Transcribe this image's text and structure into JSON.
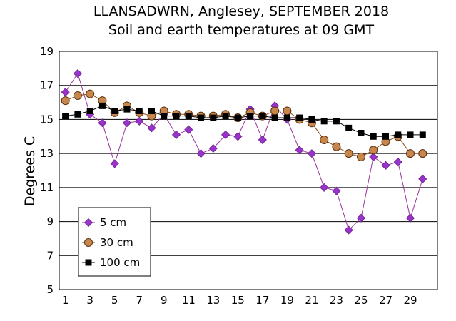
{
  "chart_data": {
    "type": "line",
    "title": [
      "LLANSADWRN, Anglesey, SEPTEMBER 2018",
      "Soil and earth temperatures at 09 GMT"
    ],
    "xlabel": "",
    "ylabel": "Degrees C",
    "x": [
      1,
      2,
      3,
      4,
      5,
      6,
      7,
      8,
      9,
      10,
      11,
      12,
      13,
      14,
      15,
      16,
      17,
      18,
      19,
      20,
      21,
      22,
      23,
      24,
      25,
      26,
      27,
      28,
      29,
      30
    ],
    "x_ticks": [
      1,
      3,
      5,
      7,
      9,
      11,
      13,
      15,
      17,
      19,
      21,
      23,
      25,
      27,
      29
    ],
    "xlim": [
      0.5,
      31.2
    ],
    "ylim": [
      5,
      19
    ],
    "y_ticks": [
      5,
      7,
      9,
      11,
      13,
      15,
      17,
      19
    ],
    "grid": "horizontal",
    "legend_position": "bottom-left",
    "series": [
      {
        "name": "5 cm",
        "marker": "diamond",
        "color": "#9933cc",
        "line_color": "#993399",
        "values": [
          16.6,
          17.7,
          15.3,
          14.8,
          12.4,
          14.8,
          14.9,
          14.5,
          15.3,
          14.1,
          14.4,
          13.0,
          13.3,
          14.1,
          14.0,
          15.6,
          13.8,
          15.8,
          15.0,
          13.2,
          13.0,
          11.0,
          10.8,
          8.5,
          9.2,
          12.8,
          12.3,
          12.5,
          9.2,
          11.5
        ]
      },
      {
        "name": "30 cm",
        "marker": "circle",
        "color": "#c8874a",
        "line_color": "#8b4a1c",
        "values": [
          16.1,
          16.4,
          16.5,
          16.1,
          15.4,
          15.8,
          15.4,
          15.2,
          15.5,
          15.3,
          15.3,
          15.2,
          15.2,
          15.3,
          15.1,
          15.4,
          15.2,
          15.5,
          15.5,
          15.0,
          14.8,
          13.8,
          13.4,
          13.0,
          12.8,
          13.2,
          13.7,
          14.0,
          13.0,
          13.0
        ]
      },
      {
        "name": "100 cm",
        "marker": "square",
        "color": "#000000",
        "line_color": "#000000",
        "values": [
          15.2,
          15.3,
          15.5,
          15.8,
          15.5,
          15.6,
          15.5,
          15.5,
          15.2,
          15.2,
          15.2,
          15.1,
          15.1,
          15.2,
          15.1,
          15.2,
          15.2,
          15.1,
          15.1,
          15.1,
          15.0,
          14.9,
          14.9,
          14.5,
          14.2,
          14.0,
          14.0,
          14.1,
          14.1,
          14.1
        ]
      }
    ]
  }
}
